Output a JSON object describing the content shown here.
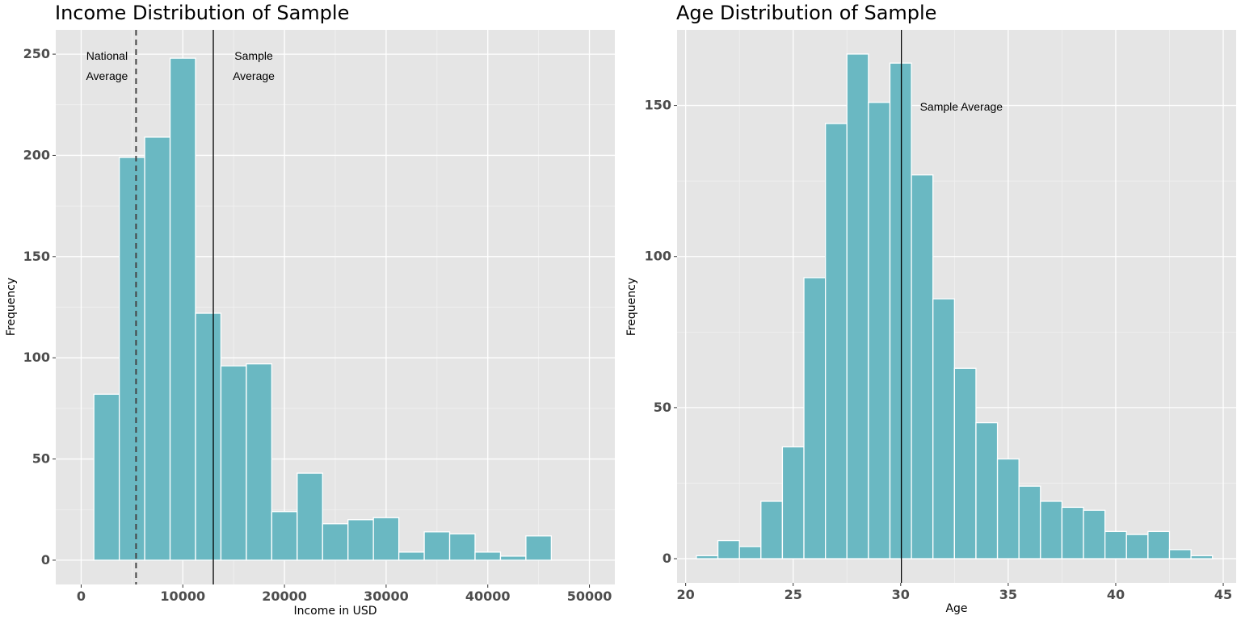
{
  "chart_data": [
    {
      "type": "bar",
      "title": "Income Distribution of Sample",
      "xlabel": "Income in USD",
      "ylabel": "Frequency",
      "xlim": [
        -2500,
        52500
      ],
      "ylim": [
        -12,
        262
      ],
      "x_ticks": [
        0,
        10000,
        20000,
        30000,
        40000,
        50000
      ],
      "x_tick_labels": [
        "0",
        "10000",
        "20000",
        "30000",
        "40000",
        "50000"
      ],
      "y_ticks": [
        0,
        50,
        100,
        150,
        200,
        250
      ],
      "y_tick_labels": [
        "0",
        "50",
        "100",
        "150",
        "200",
        "250"
      ],
      "bin_width": 2500,
      "bin_centers": [
        2500,
        5000,
        7500,
        10000,
        12500,
        15000,
        17500,
        20000,
        22500,
        25000,
        27500,
        30000,
        32500,
        35000,
        37500,
        40000,
        42500,
        45000
      ],
      "values": [
        82,
        199,
        209,
        248,
        122,
        96,
        97,
        24,
        43,
        18,
        20,
        21,
        4,
        14,
        13,
        4,
        2,
        12
      ],
      "fill_color": "#6ab8c2",
      "vlines": [
        {
          "x": 5400,
          "style": "dashed",
          "label": [
            "National",
            "Average"
          ]
        },
        {
          "x": 13000,
          "style": "solid",
          "label": [
            "Sample",
            "Average"
          ]
        }
      ],
      "grid": true
    },
    {
      "type": "bar",
      "title": "Age Distribution of Sample",
      "xlabel": "Age",
      "ylabel": "Frequency",
      "xlim": [
        19.6,
        45.6
      ],
      "ylim": [
        -8,
        175
      ],
      "x_ticks": [
        20,
        25,
        30,
        35,
        40,
        45
      ],
      "x_tick_labels": [
        "20",
        "25",
        "30",
        "35",
        "40",
        "45"
      ],
      "y_ticks": [
        0,
        50,
        100,
        150
      ],
      "y_tick_labels": [
        "0",
        "50",
        "100",
        "150"
      ],
      "bin_width": 1,
      "bin_centers": [
        21,
        22,
        23,
        24,
        25,
        26,
        27,
        28,
        29,
        30,
        31,
        32,
        33,
        34,
        35,
        36,
        37,
        38,
        39,
        40,
        41,
        42,
        43,
        44
      ],
      "values": [
        1,
        6,
        4,
        19,
        37,
        93,
        144,
        167,
        151,
        164,
        127,
        86,
        63,
        45,
        33,
        24,
        19,
        17,
        16,
        9,
        8,
        9,
        3,
        1
      ],
      "fill_color": "#6ab8c2",
      "vlines": [
        {
          "x": 30.03,
          "style": "solid",
          "label": [
            "Sample Average"
          ]
        }
      ],
      "grid": true
    }
  ]
}
